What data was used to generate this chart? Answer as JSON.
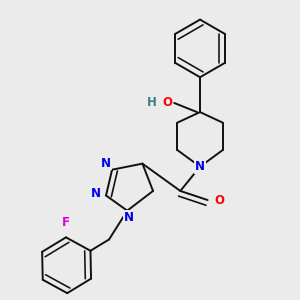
{
  "background_color": "#ebebeb",
  "figsize": [
    3.0,
    3.0
  ],
  "dpi": 100,
  "atom_colors": {
    "N": "#0000ee",
    "O": "#ff0000",
    "F": "#dd00dd",
    "H": "#3a8080",
    "C": "#111111"
  },
  "bond_color": "#111111",
  "bond_width": 1.4,
  "font_size_atom": 8.5
}
